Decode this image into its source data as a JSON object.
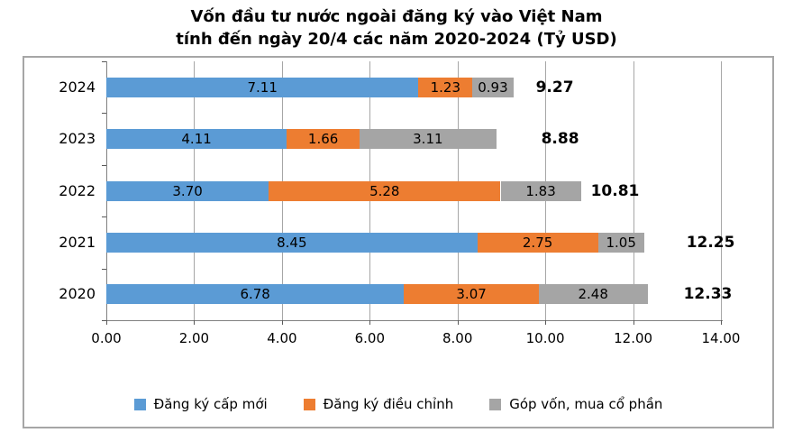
{
  "title": {
    "line1": "Vốn đầu tư nước ngoài đăng ký vào Việt Nam",
    "line2": "tính đến ngày 20/4 các năm 2020-2024 (Tỷ USD)"
  },
  "chart_data": {
    "type": "bar",
    "orientation": "horizontal",
    "stacked": true,
    "grid": true,
    "legend_position": "bottom",
    "categories": [
      "2024",
      "2023",
      "2022",
      "2021",
      "2020"
    ],
    "series": [
      {
        "name": "Đăng ký cấp mới",
        "color": "#5B9BD5",
        "values": [
          7.11,
          4.11,
          3.7,
          8.45,
          6.78
        ]
      },
      {
        "name": "Đăng ký điều chỉnh",
        "color": "#ED7D31",
        "values": [
          1.23,
          1.66,
          5.28,
          2.75,
          3.07
        ]
      },
      {
        "name": "Góp vốn, mua cổ phần",
        "color": "#A5A5A5",
        "values": [
          0.93,
          3.11,
          1.83,
          1.05,
          2.48
        ]
      }
    ],
    "totals": [
      "9.27",
      "8.88",
      "10.81",
      "12.25",
      "12.33"
    ],
    "x_ticks": [
      "0.00",
      "2.00",
      "4.00",
      "6.00",
      "8.00",
      "10.00",
      "12.00",
      "14.00"
    ],
    "xlim": [
      0,
      14
    ]
  },
  "colors": {
    "blue": "#5B9BD5",
    "orange": "#ED7D31",
    "gray": "#A5A5A5",
    "gridline": "#A6A6A6",
    "axis": "#808080",
    "tick": "#595959",
    "frame_border": "#A6A6A6",
    "text": "#000000"
  }
}
